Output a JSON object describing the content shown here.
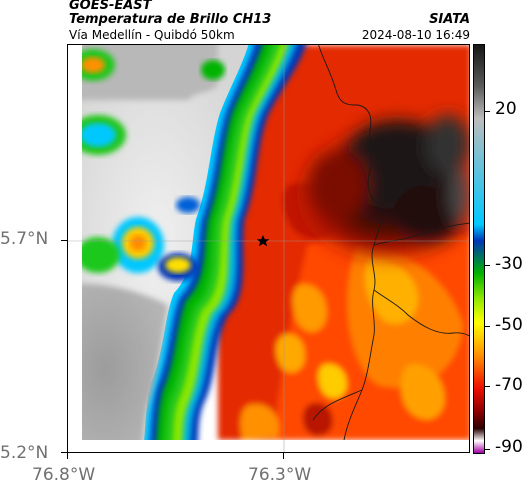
{
  "header": {
    "source": "GOES-EAST",
    "product": "Temperatura de Brillo CH13",
    "route": "Vía Medellín - Quibdó 50km",
    "organization": "SIATA",
    "datetime": "2024-08-10 16:49"
  },
  "axes": {
    "x_ticks": [
      "76.8°W",
      "76.3°W"
    ],
    "y_ticks": [
      "5.7°N",
      "5.2°N"
    ]
  },
  "colorbar": {
    "ticks": [
      "20",
      "-30",
      "-50",
      "-70",
      "-90"
    ],
    "colors": [
      "#161616",
      "#5a5a5a",
      "#bcbcbc",
      "#00c8ff",
      "#0036b8",
      "#00b400",
      "#8ce800",
      "#ffff00",
      "#ff9000",
      "#f01000",
      "#8a0000",
      "#2a0000",
      "#ffffff",
      "#a000a0"
    ]
  },
  "map": {
    "marker": "star",
    "colors": {
      "cloud_light": "#e4e4e4",
      "cloud_mid": "#a8a8a8",
      "warm_red": "#e42a00",
      "dark_warm": "#3a0a0a",
      "green_edge": "#26c81e",
      "blue_edge": "#0036b8",
      "yellow": "#ffe000",
      "orange": "#ff8a00"
    }
  }
}
